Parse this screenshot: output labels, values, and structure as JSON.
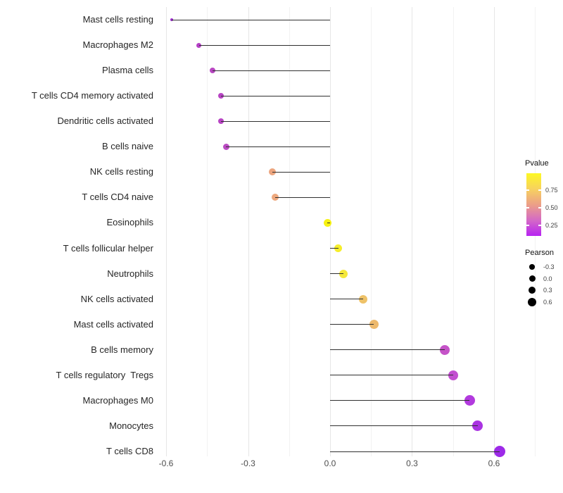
{
  "chart_data": {
    "type": "scatter",
    "variant": "lollipop",
    "title": "",
    "xlabel": "",
    "ylabel": "",
    "grid": "vertical-only",
    "background": "#ffffff",
    "stem_color": "#303030",
    "x_axis": {
      "range": [
        -0.63,
        0.755
      ],
      "major_ticks": [
        {
          "label": "-0.6",
          "value": -0.6
        },
        {
          "label": "-0.3",
          "value": -0.3
        },
        {
          "label": "0.0",
          "value": 0.0
        },
        {
          "label": "0.3",
          "value": 0.3
        },
        {
          "label": "0.6",
          "value": 0.6
        }
      ],
      "minor_tick_values": [
        -0.45,
        -0.15,
        0.15,
        0.45,
        0.75
      ]
    },
    "points": [
      {
        "label": "Mast cells resting",
        "pearson": -0.58,
        "color": "#9c2ace",
        "diameter": 4
      },
      {
        "label": "Macrophages M2",
        "pearson": -0.48,
        "color": "#b43fc6",
        "diameter": 7
      },
      {
        "label": "Plasma cells",
        "pearson": -0.43,
        "color": "#b846c2",
        "diameter": 8
      },
      {
        "label": "T cells CD4 memory activated",
        "pearson": -0.4,
        "color": "#b844c4",
        "diameter": 8
      },
      {
        "label": "Dendritic cells activated",
        "pearson": -0.4,
        "color": "#b844c4",
        "diameter": 8
      },
      {
        "label": "B cells naive",
        "pearson": -0.38,
        "color": "#bb4cc3",
        "diameter": 9
      },
      {
        "label": "NK cells resting",
        "pearson": -0.21,
        "color": "#eca57e",
        "diameter": 10
      },
      {
        "label": "T cells CD4 naive",
        "pearson": -0.2,
        "color": "#eda87e",
        "diameter": 10
      },
      {
        "label": "Eosinophils",
        "pearson": -0.01,
        "color": "#f7f211",
        "diameter": 11
      },
      {
        "label": "T cells follicular helper",
        "pearson": 0.03,
        "color": "#f6ee2a",
        "diameter": 11
      },
      {
        "label": "Neutrophils",
        "pearson": 0.05,
        "color": "#f4e83a",
        "diameter": 12
      },
      {
        "label": "NK cells activated",
        "pearson": 0.12,
        "color": "#eec268",
        "diameter": 12
      },
      {
        "label": "Mast cells activated",
        "pearson": 0.16,
        "color": "#edb96c",
        "diameter": 13
      },
      {
        "label": "B cells memory",
        "pearson": 0.42,
        "color": "#c553c8",
        "diameter": 14
      },
      {
        "label": "T cells regulatory  Tregs",
        "pearson": 0.45,
        "color": "#c24fd0",
        "diameter": 14
      },
      {
        "label": "Macrophages M0",
        "pearson": 0.51,
        "color": "#b23ade",
        "diameter": 15
      },
      {
        "label": "Monocytes",
        "pearson": 0.54,
        "color": "#aa33e2",
        "diameter": 15
      },
      {
        "label": "T cells CD8",
        "pearson": 0.62,
        "color": "#9d2ae8",
        "diameter": 16
      }
    ],
    "legend": {
      "pvalue": {
        "title": "Pvalue",
        "ticks": [
          "0.75",
          "0.50",
          "0.25"
        ],
        "gradient": [
          "#fdf824",
          "#f7d25f",
          "#ec9f87",
          "#d469c6",
          "#b723f2"
        ]
      },
      "pearson": {
        "title": "Pearson",
        "items": [
          {
            "label": "-0.3",
            "diameter": 7.5
          },
          {
            "label": "0.0",
            "diameter": 9
          },
          {
            "label": "0.3",
            "diameter": 10.5
          },
          {
            "label": "0.6",
            "diameter": 12
          }
        ]
      }
    }
  }
}
